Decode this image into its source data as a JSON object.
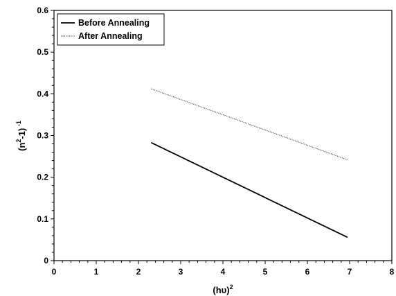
{
  "chart_data": {
    "type": "line",
    "title": "",
    "xlabel": {
      "base": "(hυ)",
      "sup": "2"
    },
    "ylabel": {
      "part1": "(n",
      "sup1": "2",
      "part2": "-1)",
      "sup2": " -1"
    },
    "xlim": [
      0,
      8
    ],
    "ylim": [
      0,
      0.6
    ],
    "x_ticks": [
      0,
      1,
      2,
      3,
      4,
      5,
      6,
      7,
      8
    ],
    "y_ticks": [
      0,
      0.1,
      0.2,
      0.3,
      0.4,
      0.5,
      0.6
    ],
    "x_tick_labels": [
      "0",
      "1",
      "2",
      "3",
      "4",
      "5",
      "6",
      "7",
      "8"
    ],
    "y_tick_labels": [
      "0",
      "0.1",
      "0.2",
      "0.3",
      "0.4",
      "0.5",
      "0.6"
    ],
    "grid": false,
    "legend_position": "top-left",
    "series": [
      {
        "name": "Before Annealing",
        "style": "solid",
        "color": "#000000",
        "x": [
          2.3,
          6.95
        ],
        "y": [
          0.283,
          0.056
        ]
      },
      {
        "name": "After Annealing",
        "style": "dotted",
        "color": "#555555",
        "x": [
          2.3,
          6.95
        ],
        "y": [
          0.412,
          0.242
        ]
      }
    ]
  }
}
